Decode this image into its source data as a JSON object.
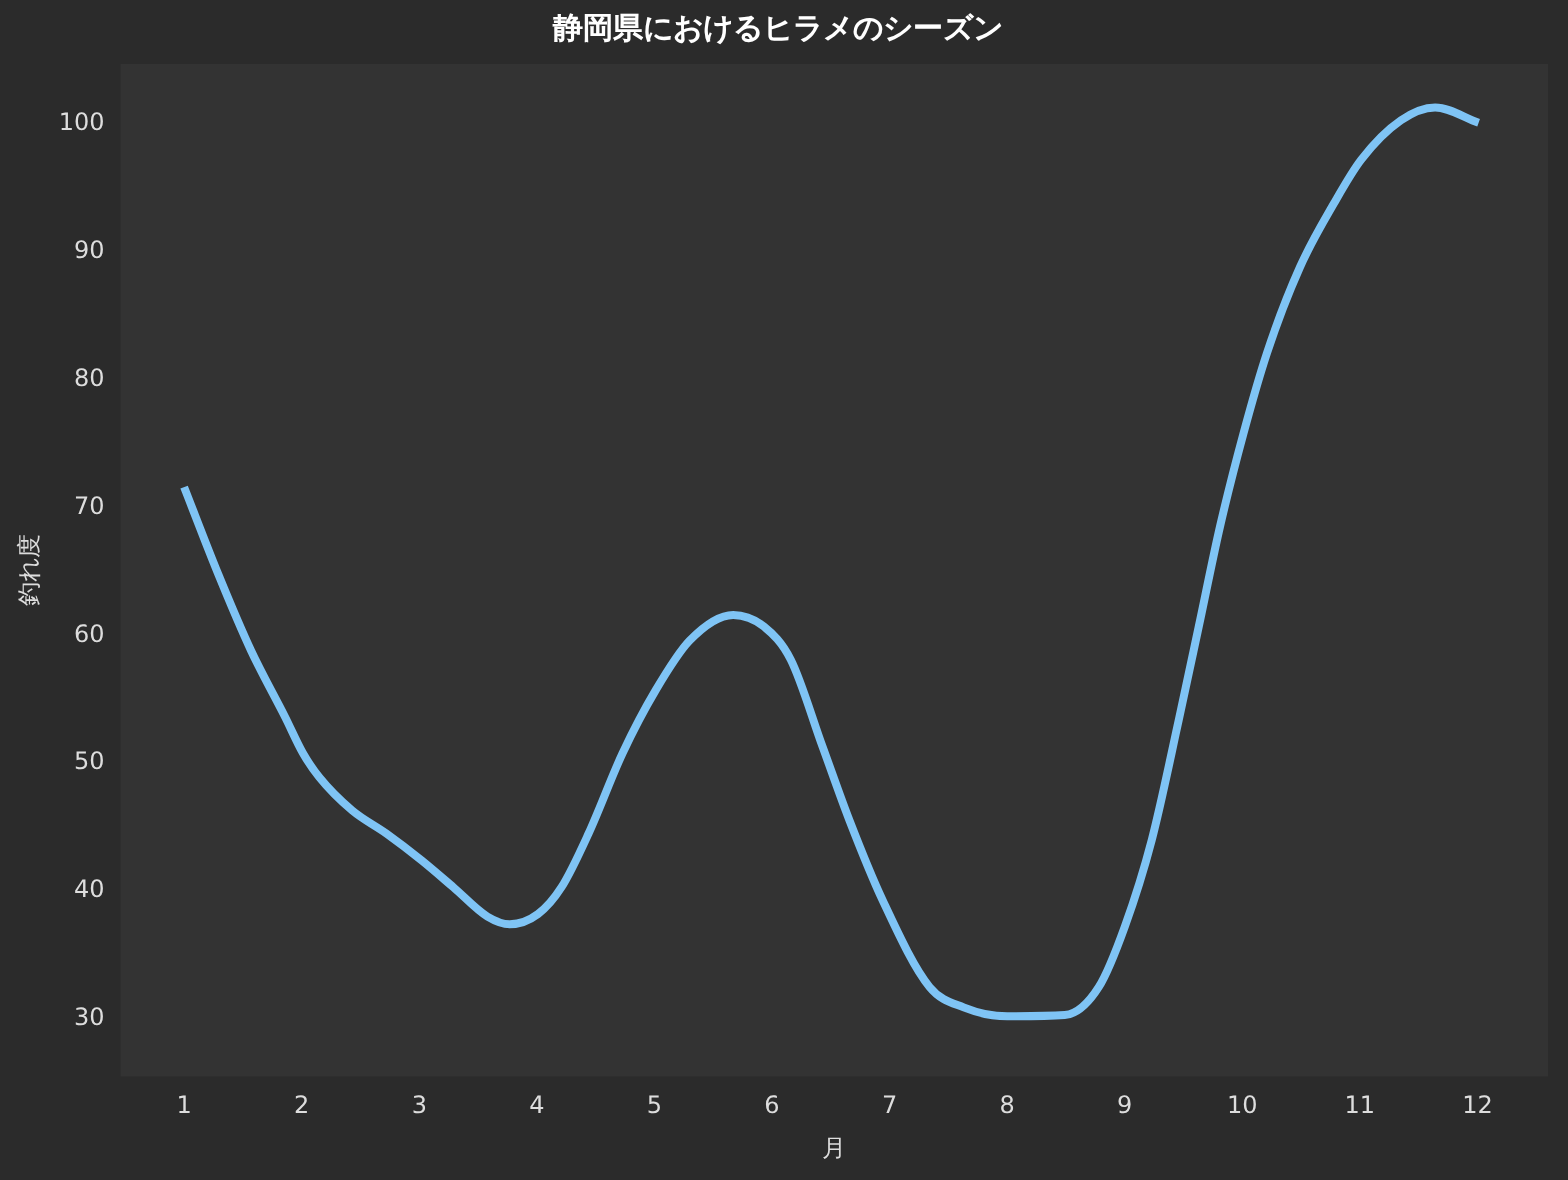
{
  "chart_data": {
    "type": "line",
    "title": "静岡県におけるヒラメのシーズン",
    "xlabel": "月",
    "ylabel": "釣れ度",
    "x": [
      1,
      1.29,
      1.57,
      1.86,
      2.01,
      2.15,
      2.43,
      2.72,
      3.02,
      3.29,
      3.58,
      3.77,
      4.01,
      4.21,
      4.44,
      4.73,
      5.01,
      5.3,
      5.67,
      5.93,
      6.16,
      6.43,
      6.66,
      6.94,
      7.34,
      7.63,
      8,
      8.49,
      8.78,
      9,
      9.23,
      9.46,
      9.63,
      9.81,
      10.01,
      10.21,
      10.49,
      10.78,
      11.01,
      11.35,
      11.64,
      12.01
    ],
    "series": [
      {
        "color": "#7fc4f5",
        "values": [
          71.6,
          64.8,
          58.8,
          53.6,
          50.8,
          48.9,
          46.3,
          44.5,
          42.4,
          40.3,
          38,
          37.4,
          38.2,
          40.3,
          44.5,
          50.8,
          55.7,
          59.6,
          61.6,
          60.7,
          58.1,
          51.3,
          45.5,
          39.3,
          32.5,
          30.9,
          30.2,
          30.3,
          32.5,
          37.2,
          44,
          53.4,
          60.7,
          68.5,
          75.8,
          82.1,
          88.8,
          93.8,
          97.2,
          100.3,
          101.3,
          100.1
        ]
      }
    ],
    "xlim": [
      0.46,
      12.6
    ],
    "xticks": [
      1,
      2,
      3,
      4,
      5,
      6,
      7,
      8,
      9,
      10,
      11,
      12
    ],
    "ylim": [
      25.5,
      104.7
    ],
    "yticks": [
      30,
      40,
      50,
      60,
      70,
      80,
      90,
      100
    ],
    "grid": false,
    "legend": false,
    "marker": "none",
    "line_style": "solid"
  }
}
